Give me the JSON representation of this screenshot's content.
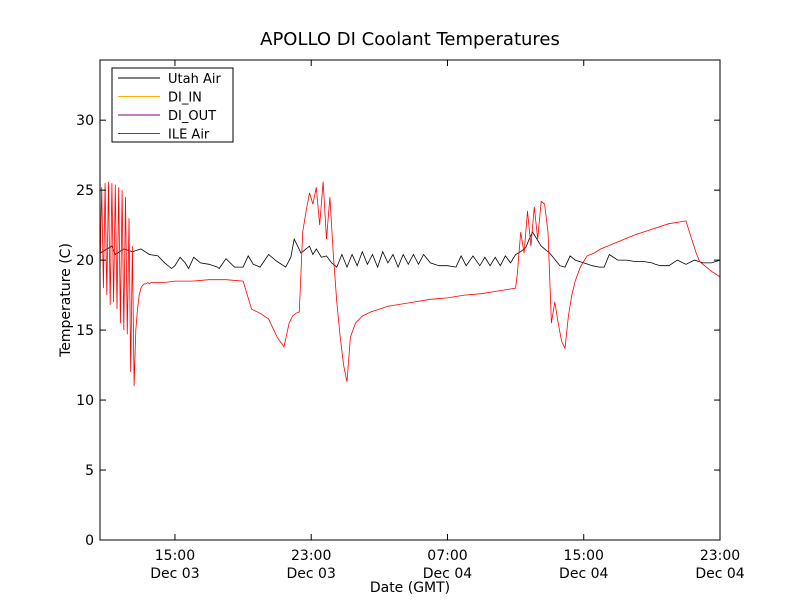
{
  "chart_data": {
    "type": "line",
    "title": "APOLLO DI Coolant Temperatures",
    "xlabel": "Date (GMT)",
    "ylabel": "Temperature (C)",
    "x_unit": "hours since Dec 03 00:00 GMT",
    "xlim": [
      10.6,
      47.0
    ],
    "ylim": [
      0,
      34.3
    ],
    "yticks": [
      0,
      5,
      10,
      15,
      20,
      25,
      30
    ],
    "xticks": [
      {
        "x": 15,
        "line1": "15:00",
        "line2": "Dec 03"
      },
      {
        "x": 23,
        "line1": "23:00",
        "line2": "Dec 03"
      },
      {
        "x": 31,
        "line1": "07:00",
        "line2": "Dec 04"
      },
      {
        "x": 39,
        "line1": "15:00",
        "line2": "Dec 04"
      },
      {
        "x": 47,
        "line1": "23:00",
        "line2": "Dec 04"
      }
    ],
    "legend_position": "top-left",
    "series": [
      {
        "name": "Utah Air",
        "color": "#000000",
        "x": [
          10.6,
          11.3,
          11.5,
          12.0,
          12.5,
          13.0,
          13.5,
          14.0,
          14.4,
          14.8,
          15.0,
          15.3,
          15.6,
          15.8,
          16.1,
          16.5,
          17.0,
          17.5,
          17.6,
          18.0,
          18.5,
          19.0,
          19.3,
          19.6,
          20.0,
          20.5,
          21.0,
          21.5,
          21.8,
          22.0,
          22.4,
          22.9,
          23.1,
          23.3,
          23.6,
          23.9,
          24.2,
          24.5,
          24.8,
          25.1,
          25.4,
          25.7,
          26.0,
          26.3,
          26.6,
          26.9,
          27.2,
          27.5,
          27.8,
          28.1,
          28.4,
          28.7,
          29.0,
          29.3,
          29.6,
          30.0,
          30.5,
          31.0,
          31.5,
          31.8,
          32.1,
          32.5,
          32.9,
          33.2,
          33.5,
          33.8,
          34.1,
          34.4,
          34.7,
          35.0,
          35.3,
          35.6,
          35.8,
          36.0,
          36.5,
          36.7,
          37.0,
          37.2,
          37.4,
          37.6,
          37.9,
          38.2,
          38.5,
          39.0,
          39.5,
          39.9,
          40.2,
          40.5,
          41.0,
          41.5,
          42.0,
          42.5,
          43.0,
          43.2,
          43.5,
          44.0,
          44.5,
          45.0,
          45.5,
          46.0,
          46.5,
          47.0
        ],
        "values": [
          20.5,
          21.0,
          20.4,
          20.8,
          20.6,
          20.8,
          20.4,
          20.3,
          19.8,
          19.4,
          19.6,
          20.2,
          19.8,
          19.4,
          20.2,
          19.8,
          19.7,
          19.5,
          19.4,
          20.1,
          19.5,
          19.5,
          20.3,
          19.7,
          19.5,
          20.4,
          19.9,
          19.5,
          20.2,
          21.5,
          20.5,
          21.0,
          20.4,
          20.8,
          20.2,
          20.3,
          19.8,
          19.5,
          20.4,
          19.5,
          20.4,
          19.6,
          20.6,
          19.7,
          20.4,
          19.5,
          20.6,
          19.8,
          20.4,
          19.5,
          20.4,
          19.7,
          20.4,
          19.7,
          20.4,
          19.8,
          19.6,
          19.6,
          19.5,
          20.3,
          19.6,
          20.3,
          19.6,
          20.2,
          19.6,
          20.2,
          19.6,
          20.3,
          19.8,
          20.4,
          20.6,
          20.9,
          21.5,
          22.0,
          21.0,
          20.8,
          20.5,
          20.2,
          19.9,
          19.6,
          19.5,
          20.3,
          20.0,
          19.8,
          19.6,
          19.5,
          19.5,
          20.4,
          20.0,
          20.0,
          19.9,
          19.9,
          19.8,
          19.7,
          19.6,
          19.6,
          20.0,
          19.7,
          20.0,
          19.8,
          19.8,
          20.0
        ]
      },
      {
        "name": "DI_IN",
        "color": "#ffb000",
        "x": [],
        "values": []
      },
      {
        "name": "DI_OUT",
        "color": "#800080",
        "x": [],
        "values": []
      },
      {
        "name": "ILE Air",
        "color": "#ff0000",
        "x": [
          10.6,
          10.7,
          10.8,
          10.9,
          11.0,
          11.1,
          11.2,
          11.3,
          11.4,
          11.5,
          11.6,
          11.7,
          11.8,
          11.9,
          12.0,
          12.1,
          12.2,
          12.3,
          12.4,
          12.5,
          12.6,
          12.7,
          12.8,
          12.9,
          13.0,
          13.1,
          13.2,
          13.3,
          13.4,
          13.5,
          13.6,
          13.8,
          14.0,
          14.4,
          15.0,
          16.0,
          17.0,
          18.0,
          19.0,
          19.5,
          20.0,
          20.5,
          21.0,
          21.4,
          21.7,
          21.9,
          22.1,
          22.3,
          22.5,
          22.7,
          22.9,
          23.1,
          23.3,
          23.5,
          23.7,
          23.9,
          24.1,
          24.3,
          24.5,
          24.7,
          24.9,
          25.1,
          25.3,
          25.6,
          26.0,
          26.5,
          27.0,
          27.5,
          28.0,
          29.0,
          30.0,
          31.0,
          32.0,
          33.0,
          34.0,
          34.5,
          35.0,
          35.1,
          35.3,
          35.5,
          35.7,
          35.9,
          36.1,
          36.3,
          36.5,
          36.7,
          36.9,
          37.1,
          37.3,
          37.5,
          37.7,
          37.9,
          38.1,
          38.3,
          38.5,
          38.8,
          39.2,
          39.6,
          40.0,
          41.0,
          42.0,
          43.0,
          44.0,
          45.0,
          45.6,
          45.8,
          46.0,
          46.5,
          47.0
        ],
        "values": [
          19.0,
          25.2,
          18.0,
          25.5,
          17.5,
          25.6,
          16.8,
          25.5,
          17.0,
          25.4,
          16.5,
          25.2,
          15.5,
          25.0,
          15.0,
          24.5,
          14.7,
          23.0,
          12.0,
          21.0,
          11.0,
          15.0,
          16.5,
          17.5,
          18.0,
          18.2,
          18.3,
          18.3,
          18.4,
          18.3,
          18.4,
          18.4,
          18.4,
          18.4,
          18.5,
          18.5,
          18.6,
          18.6,
          18.5,
          16.5,
          16.2,
          15.8,
          14.5,
          13.8,
          15.5,
          16.0,
          16.2,
          16.3,
          22.0,
          23.5,
          24.8,
          24.0,
          25.2,
          22.5,
          25.6,
          21.5,
          24.5,
          20.3,
          17.0,
          14.5,
          12.5,
          11.3,
          14.5,
          15.5,
          16.0,
          16.3,
          16.5,
          16.7,
          16.8,
          17.0,
          17.2,
          17.3,
          17.5,
          17.6,
          17.8,
          17.9,
          18.0,
          19.0,
          22.0,
          20.5,
          23.5,
          21.0,
          23.8,
          21.5,
          24.2,
          24.0,
          22.0,
          15.5,
          17.0,
          15.5,
          14.2,
          13.7,
          16.0,
          17.5,
          18.5,
          19.5,
          20.3,
          20.5,
          20.8,
          21.3,
          21.8,
          22.2,
          22.6,
          22.8,
          20.5,
          19.9,
          19.7,
          19.2,
          18.8
        ]
      }
    ]
  }
}
